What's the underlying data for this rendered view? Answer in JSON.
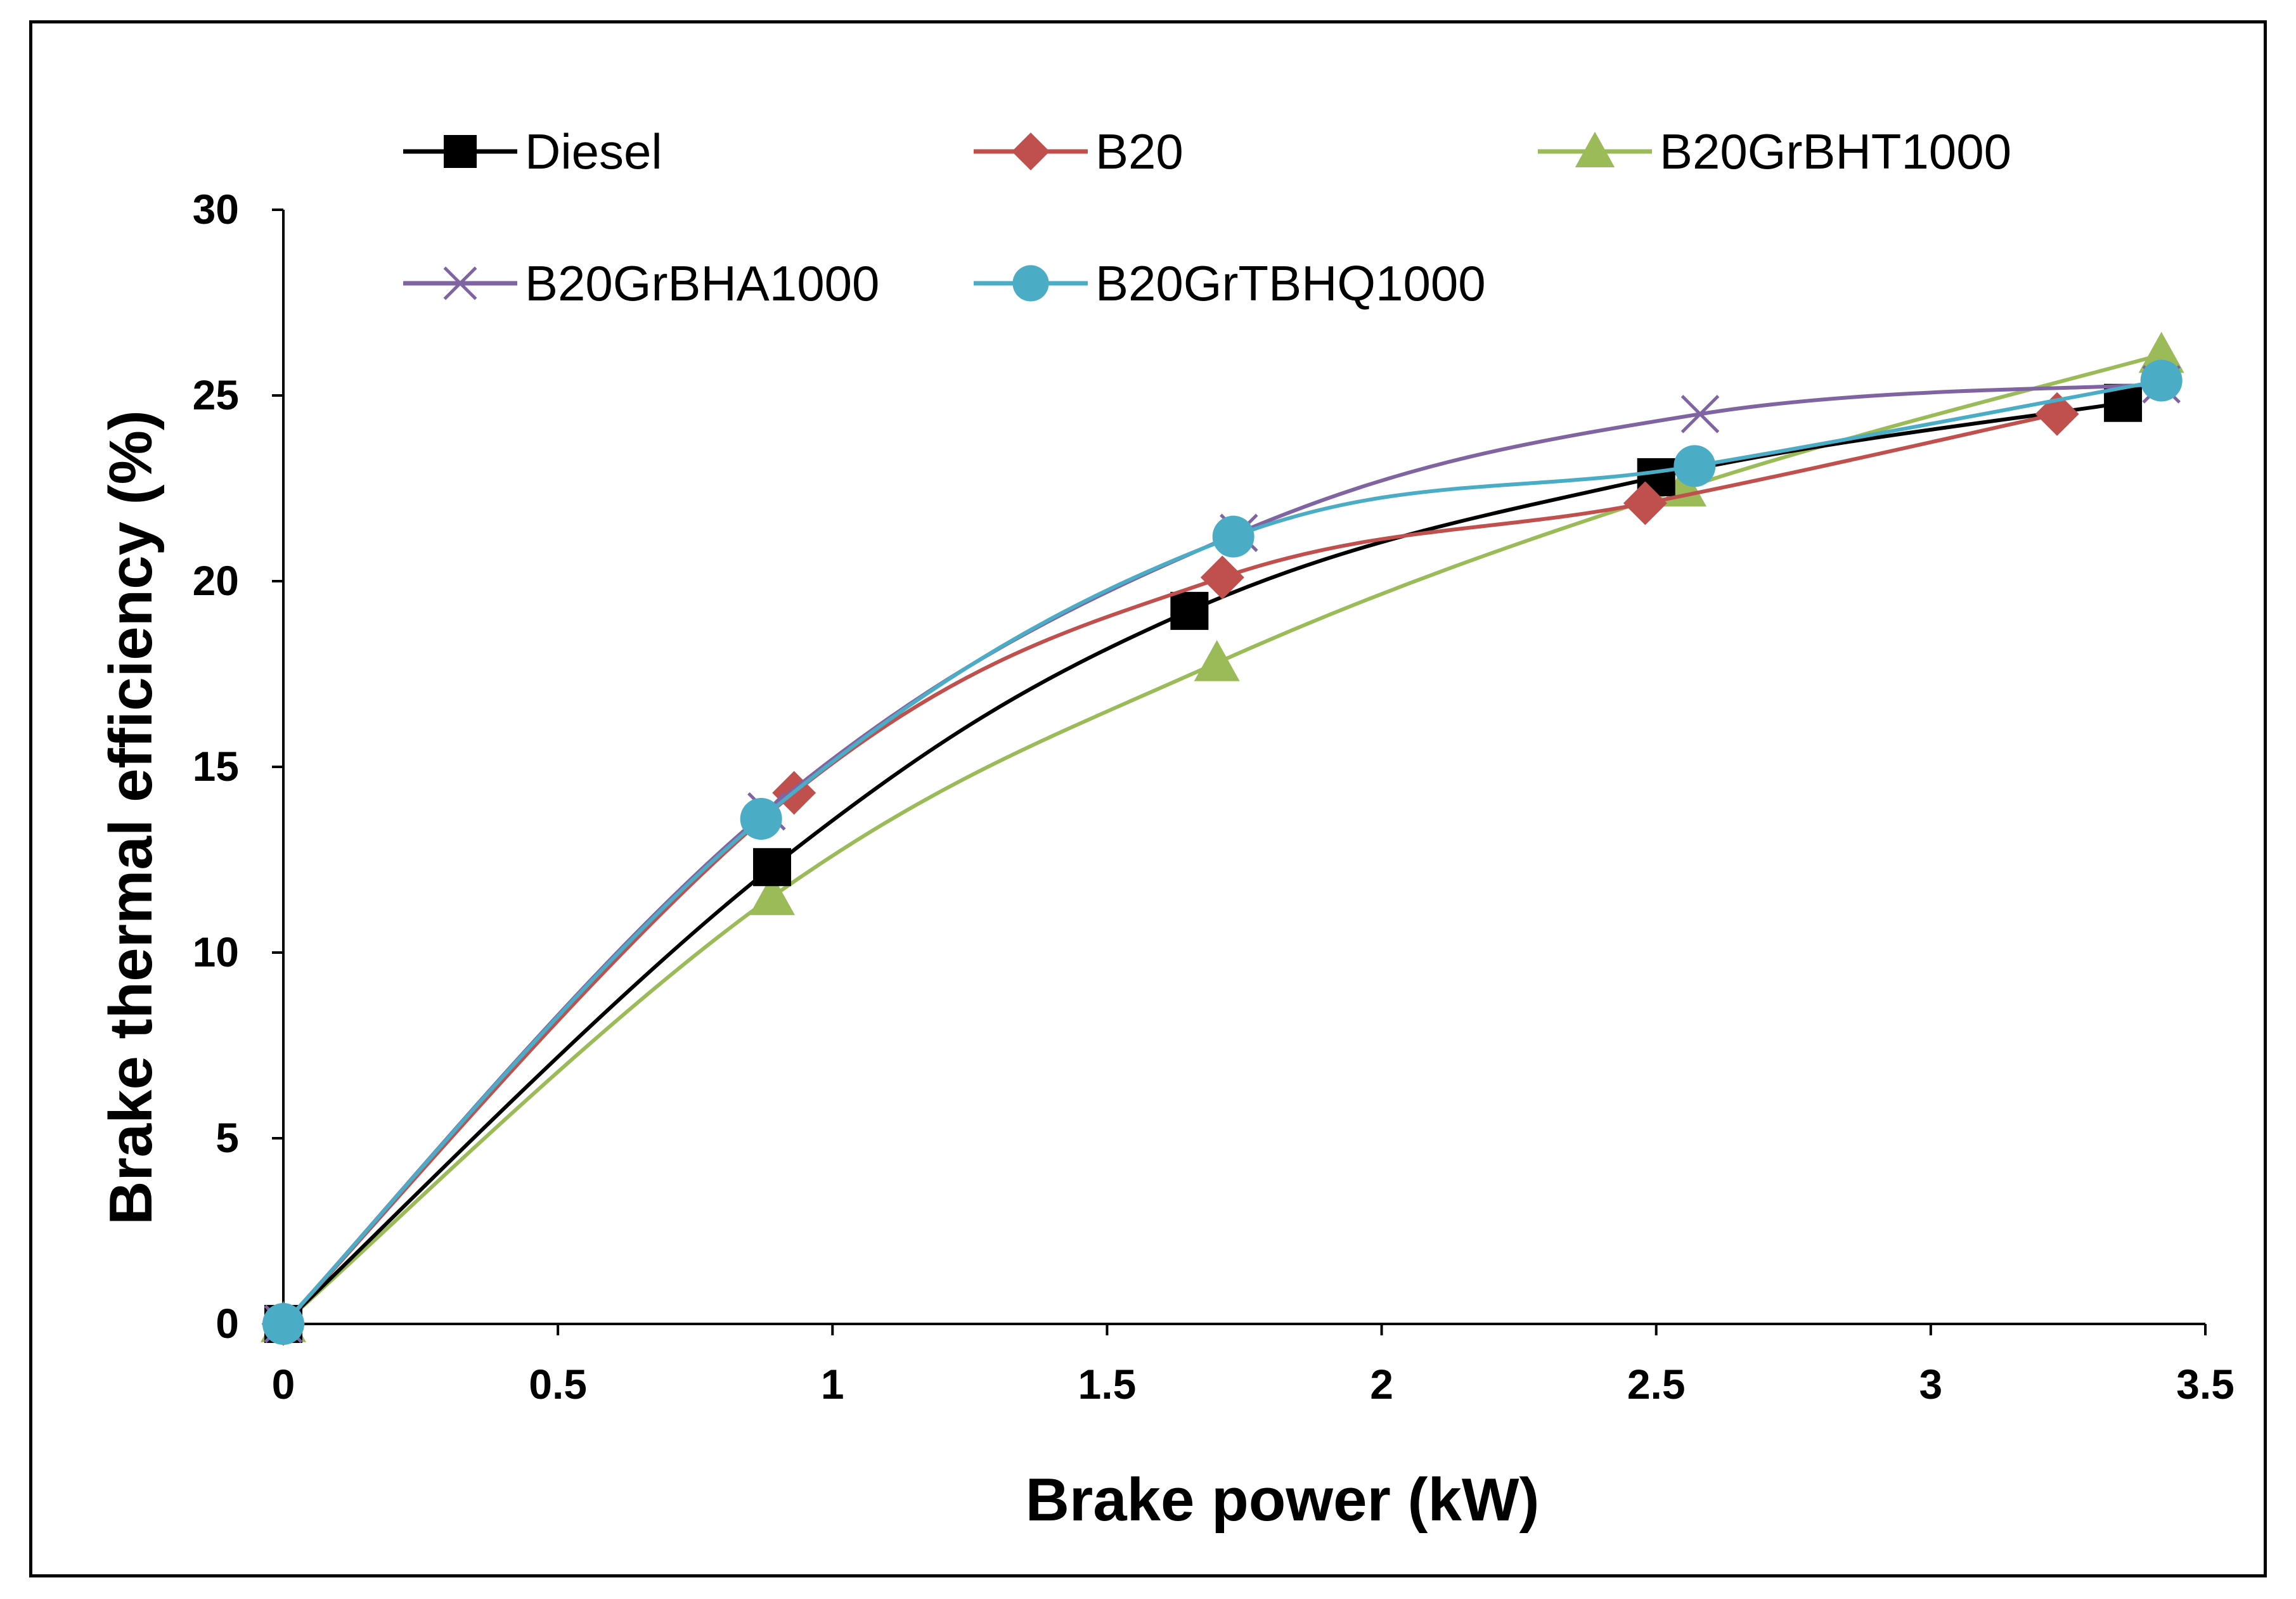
{
  "chart_data": {
    "type": "line",
    "title": "",
    "xlabel": "Brake power (kW)",
    "ylabel": "Brake thermal efficiency (%)",
    "xlim": [
      0,
      3.5
    ],
    "ylim": [
      0,
      30
    ],
    "xticks": [
      0,
      0.5,
      1,
      1.5,
      2,
      2.5,
      3,
      3.5
    ],
    "xtick_labels": [
      "0",
      "0.5",
      "1",
      "1.5",
      "2",
      "2.5",
      "3",
      "3.5"
    ],
    "yticks": [
      0,
      5,
      10,
      15,
      20,
      25,
      30
    ],
    "ytick_labels": [
      "0",
      "5",
      "10",
      "15",
      "20",
      "25",
      "30"
    ],
    "grid": false,
    "legend_position": "top",
    "smooth": true,
    "series": [
      {
        "name": "Diesel",
        "color": "#000000",
        "marker": "square",
        "x": [
          0,
          0.89,
          1.65,
          2.5,
          3.35
        ],
        "y": [
          0,
          12.3,
          19.2,
          22.8,
          24.8
        ]
      },
      {
        "name": "B20",
        "color": "#c0504d",
        "marker": "diamond",
        "x": [
          0,
          0.93,
          1.71,
          2.48,
          3.23
        ],
        "y": [
          0,
          14.3,
          20.1,
          22.1,
          24.5
        ]
      },
      {
        "name": "B20GrBHT1000",
        "color": "#9bbb59",
        "marker": "triangle",
        "x": [
          0,
          0.89,
          1.7,
          2.55,
          3.42
        ],
        "y": [
          0,
          11.5,
          17.8,
          22.5,
          26.1
        ]
      },
      {
        "name": "B20GrBHA1000",
        "color": "#8064a2",
        "marker": "x",
        "x": [
          0,
          0.88,
          1.74,
          2.58,
          3.42
        ],
        "y": [
          0,
          13.8,
          21.3,
          24.5,
          25.3
        ]
      },
      {
        "name": "B20GrTBHQ1000",
        "color": "#4bacc6",
        "marker": "circle",
        "x": [
          0,
          0.87,
          1.73,
          2.57,
          3.42
        ],
        "y": [
          0,
          13.6,
          21.2,
          23.1,
          25.4
        ]
      }
    ]
  }
}
